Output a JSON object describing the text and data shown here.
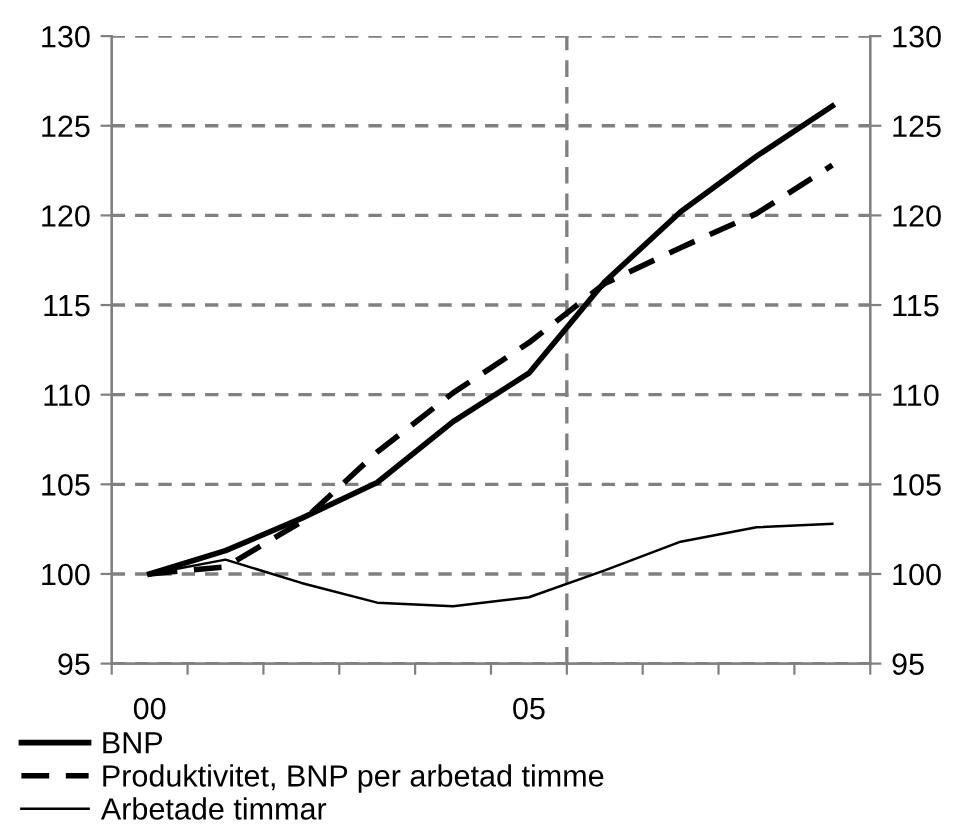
{
  "chart_data": {
    "type": "line",
    "x": [
      2000,
      2001,
      2002,
      2003,
      2004,
      2005,
      2006,
      2007,
      2008,
      2009
    ],
    "xlim": [
      1999.5,
      2009.5
    ],
    "xticks": [
      {
        "value": 1999.5,
        "label": null
      },
      {
        "value": 2000,
        "label": "00"
      },
      {
        "value": 2000.5,
        "label": null
      },
      {
        "value": 2001.5,
        "label": null
      },
      {
        "value": 2002.5,
        "label": null
      },
      {
        "value": 2003.5,
        "label": null
      },
      {
        "value": 2004.5,
        "label": null
      },
      {
        "value": 2005,
        "label": "05"
      },
      {
        "value": 2005.5,
        "label": null
      },
      {
        "value": 2006.5,
        "label": null
      },
      {
        "value": 2007.5,
        "label": null
      },
      {
        "value": 2008.5,
        "label": null
      },
      {
        "value": 2009.5,
        "label": null
      }
    ],
    "ylim": [
      95,
      130
    ],
    "yticks": [
      95,
      100,
      105,
      110,
      115,
      120,
      125,
      130
    ],
    "y2lim": [
      95,
      130
    ],
    "y2ticks": [
      95,
      100,
      105,
      110,
      115,
      120,
      125,
      130
    ],
    "grid": "y",
    "legend": "bottom",
    "marker": "none",
    "ref_lines": [
      {
        "axis": "x",
        "value": 2005.5,
        "color": "#808080",
        "line_style": "dashed"
      }
    ],
    "series": [
      {
        "name": "BNP",
        "color": "#000000",
        "line_style": "solid",
        "values": [
          100,
          101.3,
          103.1,
          105.1,
          108.5,
          111.2,
          116.3,
          120.2,
          123.3,
          126.1
        ]
      },
      {
        "name": "Produktivitet, BNP per arbetad timme",
        "color": "#000000",
        "line_style": "dashed",
        "values": [
          100,
          100.4,
          102.9,
          106.8,
          110.1,
          112.9,
          116.2,
          118.2,
          120.1,
          122.8
        ]
      },
      {
        "name": "Arbetade timmar",
        "color": "#000000",
        "line_style": "solid",
        "values": [
          100,
          100.8,
          99.5,
          98.4,
          98.2,
          98.7,
          100.2,
          101.8,
          102.6,
          102.8
        ]
      }
    ]
  }
}
